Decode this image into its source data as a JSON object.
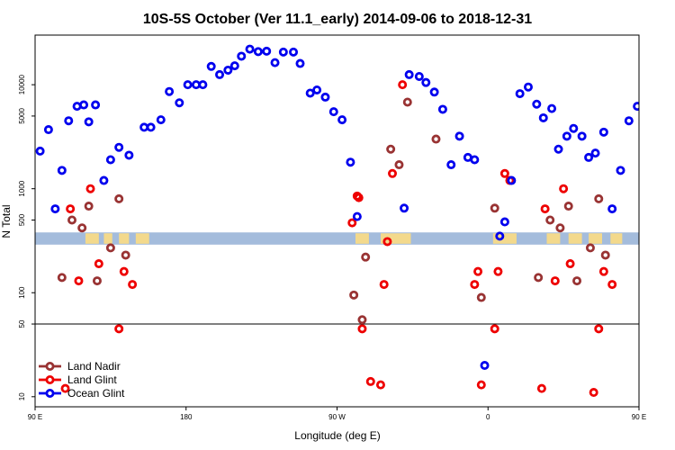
{
  "chart_data": {
    "type": "scatter",
    "title": "10S-5S October (Ver 11.1_early)   2014-09-06 to 2018-12-31",
    "xlabel": "Longitude (deg E)",
    "ylabel": "N Total",
    "y_scale": "log",
    "xlim": [
      90,
      450
    ],
    "ylim": [
      8,
      30000
    ],
    "x_ticks": [
      {
        "value": 90,
        "label": "90 E"
      },
      {
        "value": 180,
        "label": "180"
      },
      {
        "value": 270,
        "label": "90 W"
      },
      {
        "value": 360,
        "label": "0"
      },
      {
        "value": 450,
        "label": "90 E"
      },
      {
        "value": 540,
        "label": "180"
      }
    ],
    "y_ticks": [
      {
        "value": 10,
        "label": "10"
      },
      {
        "value": 50,
        "label": "50"
      },
      {
        "value": 100,
        "label": "100"
      },
      {
        "value": 500,
        "label": "500"
      },
      {
        "value": 1000,
        "label": "1000"
      },
      {
        "value": 5000,
        "label": "5000"
      },
      {
        "value": 10000,
        "label": "10000"
      }
    ],
    "reference_line": 50,
    "map_band": {
      "y_low": 290,
      "y_high": 380,
      "ocean_color": "#a4bcdc",
      "land_color": "#f3d98c"
    },
    "legend": {
      "position": "bottom-left"
    },
    "series": [
      {
        "name": "Land Nadir",
        "color": "#993333",
        "points": [
          [
            106,
            140
          ],
          [
            112,
            500
          ],
          [
            118,
            420
          ],
          [
            122,
            680
          ],
          [
            127,
            130
          ],
          [
            135,
            270
          ],
          [
            140,
            800
          ],
          [
            144,
            230
          ],
          [
            285,
            55
          ],
          [
            280,
            95
          ],
          [
            287,
            220
          ],
          [
            302,
            2400
          ],
          [
            307,
            1700
          ],
          [
            312,
            6800
          ],
          [
            329,
            3000
          ],
          [
            356,
            90
          ],
          [
            364,
            650
          ],
          [
            390,
            140
          ],
          [
            397,
            500
          ],
          [
            403,
            420
          ],
          [
            408,
            680
          ],
          [
            413,
            130
          ],
          [
            421,
            270
          ],
          [
            426,
            800
          ],
          [
            430,
            230
          ]
        ]
      },
      {
        "name": "Land Glint",
        "color": "#ee0000",
        "points": [
          [
            108,
            12
          ],
          [
            111,
            640
          ],
          [
            116,
            130
          ],
          [
            123,
            1000
          ],
          [
            128,
            190
          ],
          [
            140,
            45
          ],
          [
            143,
            160
          ],
          [
            148,
            120
          ],
          [
            279,
            470
          ],
          [
            282,
            850
          ],
          [
            283,
            820
          ],
          [
            285,
            45
          ],
          [
            290,
            14
          ],
          [
            296,
            13
          ],
          [
            298,
            120
          ],
          [
            300,
            310
          ],
          [
            303,
            1400
          ],
          [
            309,
            10000
          ],
          [
            352,
            120
          ],
          [
            354,
            160
          ],
          [
            356,
            13
          ],
          [
            364,
            45
          ],
          [
            366,
            160
          ],
          [
            370,
            1400
          ],
          [
            373,
            1200
          ],
          [
            392,
            12
          ],
          [
            394,
            640
          ],
          [
            400,
            130
          ],
          [
            405,
            1000
          ],
          [
            409,
            190
          ],
          [
            423,
            11
          ],
          [
            426,
            45
          ],
          [
            429,
            160
          ],
          [
            434,
            120
          ]
        ]
      },
      {
        "name": "Ocean Glint",
        "color": "#0000ee",
        "points": [
          [
            93,
            2300
          ],
          [
            98,
            3700
          ],
          [
            102,
            640
          ],
          [
            106,
            1500
          ],
          [
            110,
            4500
          ],
          [
            115,
            6200
          ],
          [
            119,
            6400
          ],
          [
            122,
            4400
          ],
          [
            126,
            6400
          ],
          [
            131,
            1200
          ],
          [
            135,
            1900
          ],
          [
            140,
            2500
          ],
          [
            146,
            2100
          ],
          [
            155,
            3900
          ],
          [
            159,
            3900
          ],
          [
            165,
            4600
          ],
          [
            170,
            8600
          ],
          [
            176,
            6700
          ],
          [
            181,
            10000
          ],
          [
            186,
            10000
          ],
          [
            190,
            10000
          ],
          [
            195,
            15000
          ],
          [
            200,
            12500
          ],
          [
            205,
            13800
          ],
          [
            209,
            15200
          ],
          [
            213,
            18800
          ],
          [
            218,
            22000
          ],
          [
            223,
            20800
          ],
          [
            228,
            21000
          ],
          [
            233,
            16300
          ],
          [
            238,
            20600
          ],
          [
            244,
            20600
          ],
          [
            248,
            16000
          ],
          [
            254,
            8300
          ],
          [
            258,
            8900
          ],
          [
            263,
            7600
          ],
          [
            268,
            5500
          ],
          [
            273,
            4600
          ],
          [
            278,
            1800
          ],
          [
            282,
            540
          ],
          [
            310,
            650
          ],
          [
            313,
            12500
          ],
          [
            319,
            12000
          ],
          [
            323,
            10500
          ],
          [
            328,
            8500
          ],
          [
            333,
            5800
          ],
          [
            338,
            1700
          ],
          [
            343,
            3200
          ],
          [
            348,
            2000
          ],
          [
            352,
            1900
          ],
          [
            358,
            20
          ],
          [
            367,
            350
          ],
          [
            370,
            480
          ],
          [
            374,
            1200
          ],
          [
            379,
            8200
          ],
          [
            384,
            9500
          ],
          [
            389,
            6500
          ],
          [
            393,
            4800
          ],
          [
            398,
            5900
          ],
          [
            402,
            2400
          ],
          [
            407,
            3200
          ],
          [
            411,
            3800
          ],
          [
            416,
            3200
          ],
          [
            420,
            2000
          ],
          [
            424,
            2200
          ],
          [
            429,
            3500
          ],
          [
            434,
            640
          ],
          [
            439,
            1500
          ],
          [
            444,
            4500
          ],
          [
            449,
            6200
          ]
        ]
      }
    ]
  }
}
